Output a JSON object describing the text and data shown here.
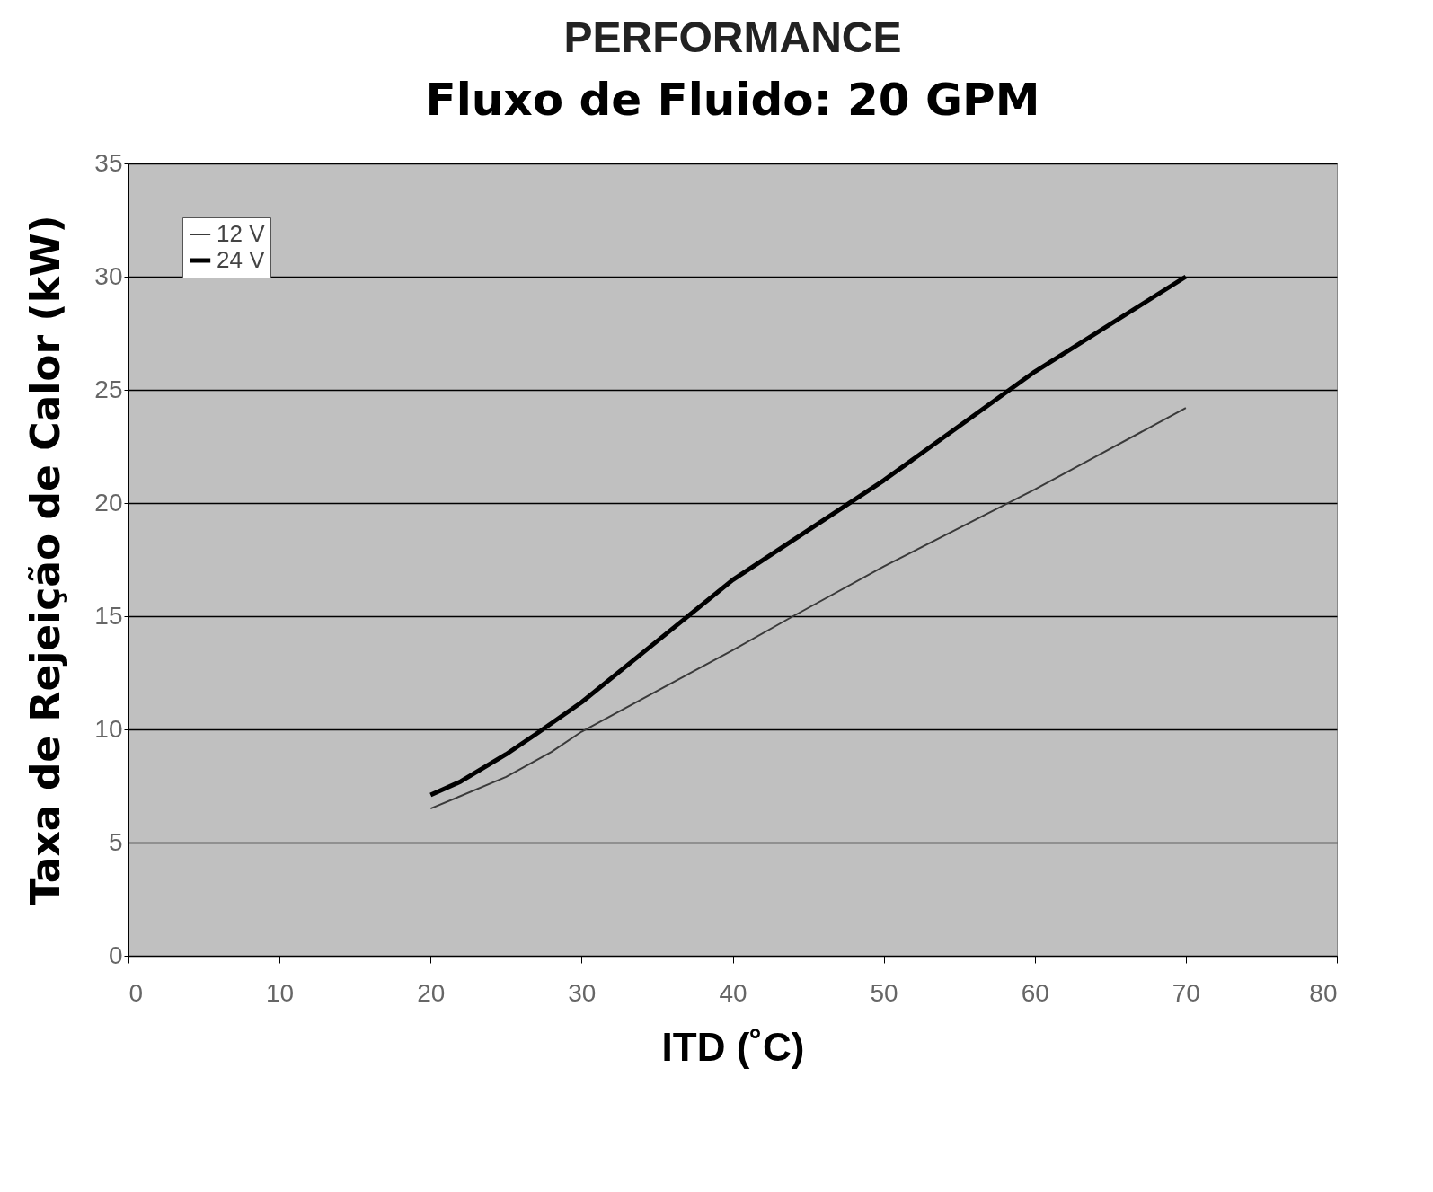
{
  "chart_data": {
    "type": "line",
    "title": "PERFORMANCE",
    "subtitle": "Fluxo de Fluido: 20 GPM",
    "xlabel": "ITD (˚C)",
    "ylabel": "Taxa de Rejeição de Calor (kW)",
    "xlim": [
      0,
      80
    ],
    "xticks": [
      0,
      10,
      20,
      30,
      40,
      50,
      60,
      70,
      80
    ],
    "ylim": [
      0,
      35
    ],
    "yticks": [
      0,
      5,
      10,
      15,
      20,
      25,
      30,
      35
    ],
    "grid": "y",
    "legend": "top left",
    "marker": "none",
    "line_style": "solid",
    "series": [
      {
        "name": "12 V",
        "color": "#3a3a3a",
        "x": [
          20,
          25,
          28,
          30,
          40,
          44,
          50,
          60,
          70
        ],
        "values": [
          6.5,
          7.9,
          9,
          9.9,
          13.5,
          15,
          17.2,
          20.6,
          24.2
        ]
      },
      {
        "name": "24 V",
        "color": "#000000",
        "x": [
          20,
          22,
          25,
          27,
          30,
          40,
          50,
          60,
          70
        ],
        "values": [
          7.1,
          7.7,
          8.9,
          9.8,
          11.2,
          16.6,
          21,
          25.8,
          30
        ]
      }
    ]
  }
}
